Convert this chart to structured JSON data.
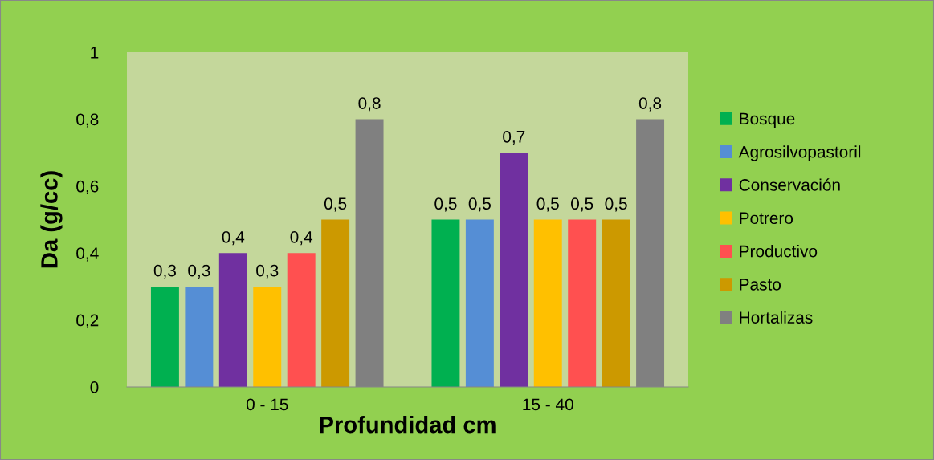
{
  "chart_data": {
    "type": "bar",
    "xlabel": "Profundidad cm",
    "ylabel": "Da (g/cc)",
    "categories": [
      "0 - 15",
      "15 - 40"
    ],
    "series": [
      {
        "name": "Bosque",
        "color": "#00b050",
        "values": [
          0.3,
          0.5
        ],
        "value_labels": [
          "0,3",
          "0,5"
        ]
      },
      {
        "name": "Agrosilvopastoril",
        "color": "#558ed5",
        "values": [
          0.3,
          0.5
        ],
        "value_labels": [
          "0,3",
          "0,5"
        ]
      },
      {
        "name": "Conservación",
        "color": "#7030a0",
        "values": [
          0.4,
          0.7
        ],
        "value_labels": [
          "0,4",
          "0,7"
        ]
      },
      {
        "name": "Potrero",
        "color": "#ffc000",
        "values": [
          0.3,
          0.5
        ],
        "value_labels": [
          "0,3",
          "0,5"
        ]
      },
      {
        "name": "Productivo",
        "color": "#ff5050",
        "values": [
          0.4,
          0.5
        ],
        "value_labels": [
          "0,4",
          "0,5"
        ]
      },
      {
        "name": "Pasto",
        "color": "#cc9900",
        "values": [
          0.5,
          0.5
        ],
        "value_labels": [
          "0,5",
          "0,5"
        ]
      },
      {
        "name": "Hortalizas",
        "color": "#808080",
        "values": [
          0.8,
          0.8
        ],
        "value_labels": [
          "0,8",
          "0,8"
        ]
      }
    ],
    "ylim": [
      0,
      1
    ],
    "yticks": [
      0,
      {
        "value": 0.2,
        "label": "0,2"
      },
      {
        "value": 0.4,
        "label": "0,4"
      },
      {
        "value": 0.6,
        "label": "0,6"
      },
      {
        "value": 0.8,
        "label": "0,8"
      },
      1
    ],
    "grid": false,
    "legend": "right"
  }
}
